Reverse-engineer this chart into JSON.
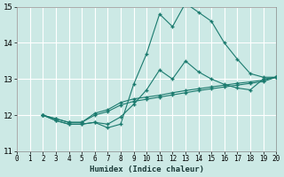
{
  "xlabel": "Humidex (Indice chaleur)",
  "bg_color": "#cce9e5",
  "grid_color": "#ffffff",
  "line_color": "#1a7a6e",
  "xlim": [
    0,
    20
  ],
  "ylim": [
    11,
    15
  ],
  "yticks": [
    11,
    12,
    13,
    14,
    15
  ],
  "xticks": [
    0,
    1,
    2,
    3,
    4,
    5,
    6,
    7,
    8,
    9,
    10,
    11,
    12,
    13,
    14,
    15,
    16,
    17,
    18,
    19,
    20
  ],
  "series": [
    {
      "x": [
        2,
        3,
        4,
        5,
        6,
        7,
        8,
        9,
        10,
        11,
        12,
        13,
        14,
        15,
        16,
        17,
        18,
        19,
        20
      ],
      "y": [
        12.0,
        11.85,
        11.75,
        11.75,
        11.8,
        11.65,
        11.75,
        12.85,
        13.7,
        14.8,
        14.45,
        15.1,
        14.85,
        14.6,
        14.0,
        13.55,
        13.15,
        13.05,
        13.05
      ]
    },
    {
      "x": [
        2,
        3,
        4,
        5,
        6,
        7,
        8,
        9,
        10,
        11,
        12,
        13,
        14,
        15,
        16,
        17,
        18,
        19,
        20
      ],
      "y": [
        12.0,
        11.85,
        11.75,
        11.75,
        11.8,
        11.75,
        11.95,
        12.3,
        12.7,
        13.25,
        13.0,
        13.5,
        13.2,
        13.0,
        12.85,
        12.75,
        12.7,
        13.0,
        13.05
      ]
    },
    {
      "x": [
        2,
        3,
        4,
        5,
        6,
        7,
        8,
        9,
        10,
        11,
        12,
        13,
        14,
        15,
        16,
        17,
        18,
        19,
        20
      ],
      "y": [
        12.0,
        11.9,
        11.8,
        11.8,
        12.05,
        12.15,
        12.35,
        12.45,
        12.5,
        12.55,
        12.62,
        12.68,
        12.73,
        12.78,
        12.83,
        12.88,
        12.92,
        12.97,
        13.05
      ]
    },
    {
      "x": [
        2,
        3,
        4,
        5,
        6,
        7,
        8,
        9,
        10,
        11,
        12,
        13,
        14,
        15,
        16,
        17,
        18,
        19,
        20
      ],
      "y": [
        12.0,
        11.9,
        11.8,
        11.8,
        12.0,
        12.1,
        12.28,
        12.38,
        12.44,
        12.5,
        12.56,
        12.62,
        12.68,
        12.73,
        12.78,
        12.83,
        12.88,
        12.93,
        13.05
      ]
    }
  ]
}
